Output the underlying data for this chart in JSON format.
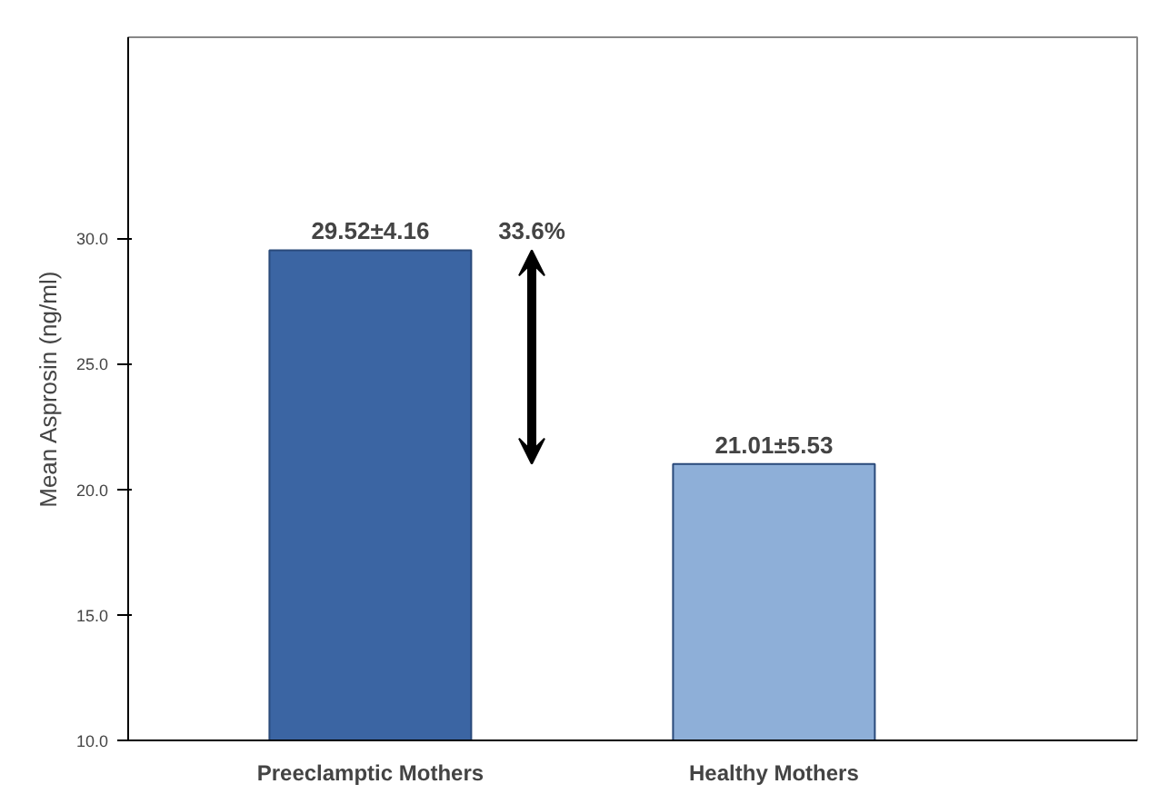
{
  "chart_data": {
    "type": "bar",
    "ylabel": "Mean Asprosin (ng/ml)",
    "categories": [
      "Preeclamptic Mothers",
      "Healthy Mothers"
    ],
    "values": [
      29.52,
      21.01
    ],
    "colors": [
      "#3b65a3",
      "#8eafd8"
    ],
    "value_labels": [
      "29.52±4.16",
      "21.01±5.53"
    ],
    "annotations": [
      "33.6%"
    ],
    "ylim": [
      10,
      38
    ],
    "yticks": [
      {
        "value": 10,
        "label": "10.0"
      },
      {
        "value": 15,
        "label": "15.0"
      },
      {
        "value": 20,
        "label": "20.0"
      },
      {
        "value": 25,
        "label": "25.0"
      },
      {
        "value": 30,
        "label": "30.0"
      }
    ],
    "grid": false
  }
}
